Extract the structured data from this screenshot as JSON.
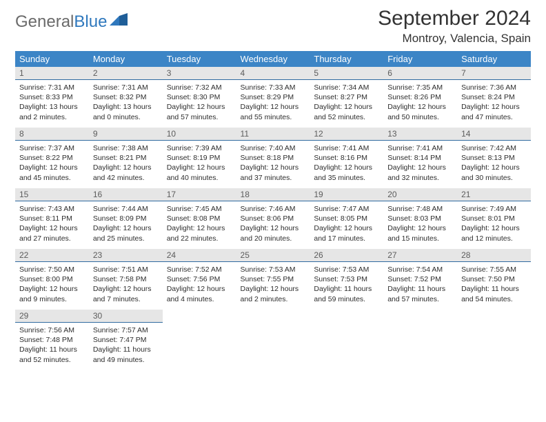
{
  "brand": {
    "part1": "General",
    "part2": "Blue"
  },
  "title": "September 2024",
  "location": "Montroy, Valencia, Spain",
  "header_color": "#3c85c6",
  "daybar_color": "#e6e6e6",
  "daybar_border": "#2f6aa0",
  "weekdays": [
    "Sunday",
    "Monday",
    "Tuesday",
    "Wednesday",
    "Thursday",
    "Friday",
    "Saturday"
  ],
  "weeks": [
    [
      {
        "n": "1",
        "sunrise": "7:31 AM",
        "sunset": "8:33 PM",
        "daylight": "13 hours and 2 minutes."
      },
      {
        "n": "2",
        "sunrise": "7:31 AM",
        "sunset": "8:32 PM",
        "daylight": "13 hours and 0 minutes."
      },
      {
        "n": "3",
        "sunrise": "7:32 AM",
        "sunset": "8:30 PM",
        "daylight": "12 hours and 57 minutes."
      },
      {
        "n": "4",
        "sunrise": "7:33 AM",
        "sunset": "8:29 PM",
        "daylight": "12 hours and 55 minutes."
      },
      {
        "n": "5",
        "sunrise": "7:34 AM",
        "sunset": "8:27 PM",
        "daylight": "12 hours and 52 minutes."
      },
      {
        "n": "6",
        "sunrise": "7:35 AM",
        "sunset": "8:26 PM",
        "daylight": "12 hours and 50 minutes."
      },
      {
        "n": "7",
        "sunrise": "7:36 AM",
        "sunset": "8:24 PM",
        "daylight": "12 hours and 47 minutes."
      }
    ],
    [
      {
        "n": "8",
        "sunrise": "7:37 AM",
        "sunset": "8:22 PM",
        "daylight": "12 hours and 45 minutes."
      },
      {
        "n": "9",
        "sunrise": "7:38 AM",
        "sunset": "8:21 PM",
        "daylight": "12 hours and 42 minutes."
      },
      {
        "n": "10",
        "sunrise": "7:39 AM",
        "sunset": "8:19 PM",
        "daylight": "12 hours and 40 minutes."
      },
      {
        "n": "11",
        "sunrise": "7:40 AM",
        "sunset": "8:18 PM",
        "daylight": "12 hours and 37 minutes."
      },
      {
        "n": "12",
        "sunrise": "7:41 AM",
        "sunset": "8:16 PM",
        "daylight": "12 hours and 35 minutes."
      },
      {
        "n": "13",
        "sunrise": "7:41 AM",
        "sunset": "8:14 PM",
        "daylight": "12 hours and 32 minutes."
      },
      {
        "n": "14",
        "sunrise": "7:42 AM",
        "sunset": "8:13 PM",
        "daylight": "12 hours and 30 minutes."
      }
    ],
    [
      {
        "n": "15",
        "sunrise": "7:43 AM",
        "sunset": "8:11 PM",
        "daylight": "12 hours and 27 minutes."
      },
      {
        "n": "16",
        "sunrise": "7:44 AM",
        "sunset": "8:09 PM",
        "daylight": "12 hours and 25 minutes."
      },
      {
        "n": "17",
        "sunrise": "7:45 AM",
        "sunset": "8:08 PM",
        "daylight": "12 hours and 22 minutes."
      },
      {
        "n": "18",
        "sunrise": "7:46 AM",
        "sunset": "8:06 PM",
        "daylight": "12 hours and 20 minutes."
      },
      {
        "n": "19",
        "sunrise": "7:47 AM",
        "sunset": "8:05 PM",
        "daylight": "12 hours and 17 minutes."
      },
      {
        "n": "20",
        "sunrise": "7:48 AM",
        "sunset": "8:03 PM",
        "daylight": "12 hours and 15 minutes."
      },
      {
        "n": "21",
        "sunrise": "7:49 AM",
        "sunset": "8:01 PM",
        "daylight": "12 hours and 12 minutes."
      }
    ],
    [
      {
        "n": "22",
        "sunrise": "7:50 AM",
        "sunset": "8:00 PM",
        "daylight": "12 hours and 9 minutes."
      },
      {
        "n": "23",
        "sunrise": "7:51 AM",
        "sunset": "7:58 PM",
        "daylight": "12 hours and 7 minutes."
      },
      {
        "n": "24",
        "sunrise": "7:52 AM",
        "sunset": "7:56 PM",
        "daylight": "12 hours and 4 minutes."
      },
      {
        "n": "25",
        "sunrise": "7:53 AM",
        "sunset": "7:55 PM",
        "daylight": "12 hours and 2 minutes."
      },
      {
        "n": "26",
        "sunrise": "7:53 AM",
        "sunset": "7:53 PM",
        "daylight": "11 hours and 59 minutes."
      },
      {
        "n": "27",
        "sunrise": "7:54 AM",
        "sunset": "7:52 PM",
        "daylight": "11 hours and 57 minutes."
      },
      {
        "n": "28",
        "sunrise": "7:55 AM",
        "sunset": "7:50 PM",
        "daylight": "11 hours and 54 minutes."
      }
    ],
    [
      {
        "n": "29",
        "sunrise": "7:56 AM",
        "sunset": "7:48 PM",
        "daylight": "11 hours and 52 minutes."
      },
      {
        "n": "30",
        "sunrise": "7:57 AM",
        "sunset": "7:47 PM",
        "daylight": "11 hours and 49 minutes."
      },
      null,
      null,
      null,
      null,
      null
    ]
  ],
  "labels": {
    "sunrise": "Sunrise: ",
    "sunset": "Sunset: ",
    "daylight": "Daylight: "
  }
}
